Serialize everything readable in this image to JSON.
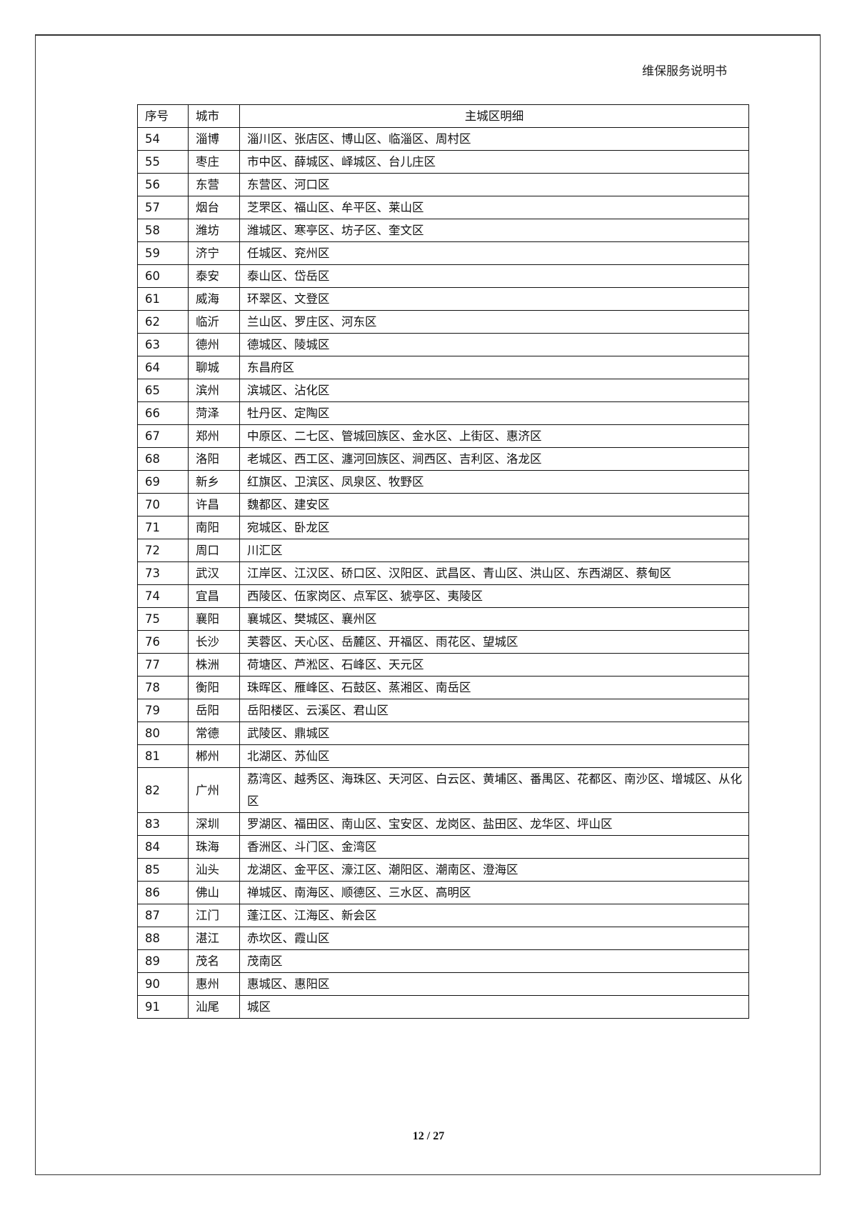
{
  "header": {
    "title": "维保服务说明书"
  },
  "table": {
    "columns": [
      "序号",
      "城市",
      "主城区明细"
    ],
    "rows": [
      [
        "54",
        "淄博",
        "淄川区、张店区、博山区、临淄区、周村区"
      ],
      [
        "55",
        "枣庄",
        "市中区、薛城区、峄城区、台儿庄区"
      ],
      [
        "56",
        "东营",
        "东营区、河口区"
      ],
      [
        "57",
        "烟台",
        "芝罘区、福山区、牟平区、莱山区"
      ],
      [
        "58",
        "潍坊",
        "潍城区、寒亭区、坊子区、奎文区"
      ],
      [
        "59",
        "济宁",
        "任城区、兖州区"
      ],
      [
        "60",
        "泰安",
        "泰山区、岱岳区"
      ],
      [
        "61",
        "威海",
        "环翠区、文登区"
      ],
      [
        "62",
        "临沂",
        "兰山区、罗庄区、河东区"
      ],
      [
        "63",
        "德州",
        "德城区、陵城区"
      ],
      [
        "64",
        "聊城",
        "东昌府区"
      ],
      [
        "65",
        "滨州",
        "滨城区、沾化区"
      ],
      [
        "66",
        "菏泽",
        "牡丹区、定陶区"
      ],
      [
        "67",
        "郑州",
        "中原区、二七区、管城回族区、金水区、上街区、惠济区"
      ],
      [
        "68",
        "洛阳",
        "老城区、西工区、瀍河回族区、涧西区、吉利区、洛龙区"
      ],
      [
        "69",
        "新乡",
        "红旗区、卫滨区、凤泉区、牧野区"
      ],
      [
        "70",
        "许昌",
        "魏都区、建安区"
      ],
      [
        "71",
        "南阳",
        "宛城区、卧龙区"
      ],
      [
        "72",
        "周口",
        "川汇区"
      ],
      [
        "73",
        "武汉",
        "江岸区、江汉区、硚口区、汉阳区、武昌区、青山区、洪山区、东西湖区、蔡甸区"
      ],
      [
        "74",
        "宜昌",
        "西陵区、伍家岗区、点军区、猇亭区、夷陵区"
      ],
      [
        "75",
        "襄阳",
        "襄城区、樊城区、襄州区"
      ],
      [
        "76",
        "长沙",
        "芙蓉区、天心区、岳麓区、开福区、雨花区、望城区"
      ],
      [
        "77",
        "株洲",
        "荷塘区、芦淞区、石峰区、天元区"
      ],
      [
        "78",
        "衡阳",
        "珠晖区、雁峰区、石鼓区、蒸湘区、南岳区"
      ],
      [
        "79",
        "岳阳",
        "岳阳楼区、云溪区、君山区"
      ],
      [
        "80",
        "常德",
        "武陵区、鼎城区"
      ],
      [
        "81",
        "郴州",
        "北湖区、苏仙区"
      ],
      [
        "82",
        "广州",
        "荔湾区、越秀区、海珠区、天河区、白云区、黄埔区、番禺区、花都区、南沙区、增城区、从化区"
      ],
      [
        "83",
        "深圳",
        "罗湖区、福田区、南山区、宝安区、龙岗区、盐田区、龙华区、坪山区"
      ],
      [
        "84",
        "珠海",
        "香洲区、斗门区、金湾区"
      ],
      [
        "85",
        "汕头",
        "龙湖区、金平区、濠江区、潮阳区、潮南区、澄海区"
      ],
      [
        "86",
        "佛山",
        "禅城区、南海区、顺德区、三水区、高明区"
      ],
      [
        "87",
        "江门",
        "蓬江区、江海区、新会区"
      ],
      [
        "88",
        "湛江",
        "赤坎区、霞山区"
      ],
      [
        "89",
        "茂名",
        "茂南区"
      ],
      [
        "90",
        "惠州",
        "惠城区、惠阳区"
      ],
      [
        "91",
        "汕尾",
        "城区"
      ]
    ]
  },
  "footer": {
    "page": "12",
    "separator": "/",
    "total": "27"
  }
}
